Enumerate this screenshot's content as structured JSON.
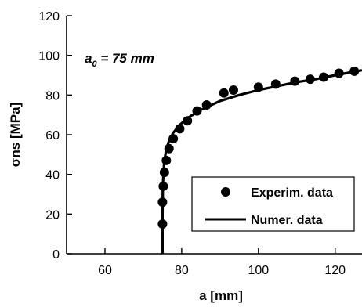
{
  "chart_data": {
    "type": "scatter",
    "xlabel": "a  [mm]",
    "ylabel": "σns  [MPa]",
    "xlim": [
      50,
      127
    ],
    "ylim": [
      0,
      120
    ],
    "xticks": [
      60,
      80,
      100,
      120
    ],
    "yticks": [
      0,
      20,
      40,
      60,
      80,
      100,
      120
    ],
    "grid": false,
    "legend_position": "bottom-right",
    "annotation": {
      "prefix": "a",
      "subscript": "0",
      "suffix": " = 75 mm"
    },
    "series": [
      {
        "name": "Experim. data",
        "kind": "markers",
        "points": [
          [
            75.0,
            15
          ],
          [
            75.0,
            26
          ],
          [
            75.2,
            34
          ],
          [
            75.5,
            41
          ],
          [
            76.0,
            47
          ],
          [
            76.7,
            53
          ],
          [
            77.8,
            58
          ],
          [
            79.5,
            63
          ],
          [
            81.5,
            67
          ],
          [
            84.0,
            72
          ],
          [
            86.5,
            75
          ],
          [
            91.0,
            81
          ],
          [
            93.5,
            82.5
          ],
          [
            100.0,
            84
          ],
          [
            104.5,
            85.5
          ],
          [
            109.5,
            87
          ],
          [
            113.5,
            88
          ],
          [
            117.0,
            89
          ],
          [
            121.0,
            91
          ],
          [
            125.0,
            92
          ]
        ],
        "color": "#000000"
      },
      {
        "name": "Numer. data",
        "kind": "line",
        "points": [
          [
            75.0,
            0
          ],
          [
            75.0,
            20
          ],
          [
            75.1,
            35
          ],
          [
            75.4,
            45
          ],
          [
            75.9,
            52
          ],
          [
            76.7,
            57
          ],
          [
            77.8,
            61
          ],
          [
            79.5,
            65
          ],
          [
            82.0,
            69
          ],
          [
            85.0,
            72.5
          ],
          [
            90.0,
            77
          ],
          [
            95.0,
            80
          ],
          [
            100.0,
            82.5
          ],
          [
            105.0,
            84.5
          ],
          [
            110.0,
            86.5
          ],
          [
            115.0,
            88
          ],
          [
            120.0,
            90
          ],
          [
            127.0,
            92.5
          ]
        ],
        "color": "#000000"
      }
    ]
  }
}
